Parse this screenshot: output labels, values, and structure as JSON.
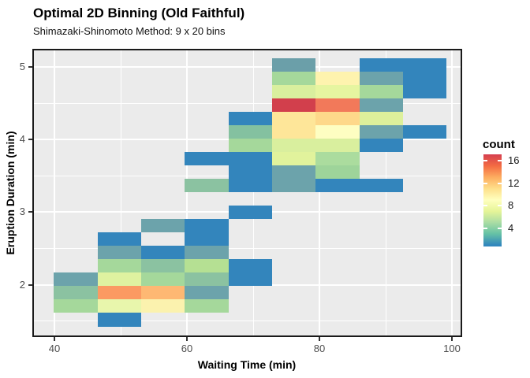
{
  "header": {
    "title": "Optimal 2D Binning (Old Faithful)",
    "subtitle": "Shimazaki-Shinomoto Method: 9 x 20 bins"
  },
  "style": {
    "panel_background": "#EBEBEB",
    "grid_color": "#FFFFFF",
    "panel_border_color": "#1A1A1A",
    "axis_text_color": "#4D4D4D",
    "tick_mark_color": "#333333"
  },
  "chart_data": {
    "type": "heatmap",
    "title": "Optimal 2D Binning (Old Faithful)",
    "subtitle": "Shimazaki-Shinomoto Method: 9 x 20 bins",
    "xlabel": "Waiting Time (min)",
    "ylabel": "Eruption Duration (min)",
    "legend_title": "count",
    "palette": "Spectral reversed (blue=low, red=high)",
    "count_range": [
      1,
      17
    ],
    "x_bins": 9,
    "y_bins": 20,
    "x_bin_edges": [
      40.0,
      46.6,
      53.2,
      59.8,
      66.4,
      73.0,
      79.6,
      86.2,
      92.8,
      99.4
    ],
    "y_bin_edges": [
      1.5,
      1.68,
      1.86,
      2.04,
      2.22,
      2.4,
      2.58,
      2.76,
      2.94,
      3.12,
      3.3,
      3.48,
      3.66,
      3.84,
      4.02,
      4.2,
      4.38,
      4.56,
      4.74,
      4.92,
      5.1
    ],
    "row_convention": "row 0 = top bin (eruption 4.92-5.10), row 19 = bottom bin (1.50-1.68); col 0 = leftmost waiting-time bin",
    "x_ticks": [
      40,
      60,
      80,
      100
    ],
    "y_ticks": [
      5,
      4,
      3,
      2
    ],
    "x_minor_ticks": [
      50,
      70,
      90
    ],
    "y_minor_ticks": [
      4.5,
      3.5,
      2.5,
      1.5
    ],
    "tiles": [
      {
        "col": 0,
        "row": 16,
        "count": 3,
        "color": "#6CA3AB"
      },
      {
        "col": 0,
        "row": 17,
        "count": 4,
        "color": "#8BC2A1"
      },
      {
        "col": 0,
        "row": 18,
        "count": 5,
        "color": "#A5D89B"
      },
      {
        "col": 1,
        "row": 13,
        "count": 1,
        "color": "#3385BC"
      },
      {
        "col": 1,
        "row": 14,
        "count": 3,
        "color": "#6CA3AB"
      },
      {
        "col": 1,
        "row": 15,
        "count": 5,
        "color": "#A5D89B"
      },
      {
        "col": 1,
        "row": 16,
        "count": 7,
        "color": "#DFF2A0"
      },
      {
        "col": 1,
        "row": 17,
        "count": 14,
        "color": "#FB9A62"
      },
      {
        "col": 1,
        "row": 18,
        "count": 8,
        "color": "#E8F6AC"
      },
      {
        "col": 1,
        "row": 19,
        "count": 1,
        "color": "#3385BC"
      },
      {
        "col": 2,
        "row": 12,
        "count": 3,
        "color": "#6CA3AB"
      },
      {
        "col": 2,
        "row": 14,
        "count": 1,
        "color": "#3385BC"
      },
      {
        "col": 2,
        "row": 15,
        "count": 4,
        "color": "#8BC2A1"
      },
      {
        "col": 2,
        "row": 16,
        "count": 5,
        "color": "#A5D89B"
      },
      {
        "col": 2,
        "row": 17,
        "count": 13,
        "color": "#FEB873"
      },
      {
        "col": 2,
        "row": 18,
        "count": 9,
        "color": "#FBF2AE"
      },
      {
        "col": 3,
        "row": 7,
        "count": 1,
        "color": "#3385BC"
      },
      {
        "col": 3,
        "row": 9,
        "count": 4,
        "color": "#8BC2A1"
      },
      {
        "col": 3,
        "row": 12,
        "count": 1,
        "color": "#3385BC"
      },
      {
        "col": 3,
        "row": 13,
        "count": 1,
        "color": "#3385BC"
      },
      {
        "col": 3,
        "row": 14,
        "count": 3,
        "color": "#6CA3AB"
      },
      {
        "col": 3,
        "row": 15,
        "count": 6,
        "color": "#B5E093"
      },
      {
        "col": 3,
        "row": 16,
        "count": 4,
        "color": "#8BC2A1"
      },
      {
        "col": 3,
        "row": 17,
        "count": 3,
        "color": "#6CA3AB"
      },
      {
        "col": 3,
        "row": 18,
        "count": 5,
        "color": "#A5D89B"
      },
      {
        "col": 4,
        "row": 4,
        "count": 1,
        "color": "#3385BC"
      },
      {
        "col": 4,
        "row": 5,
        "count": 4,
        "color": "#84C1A0"
      },
      {
        "col": 4,
        "row": 6,
        "count": 5,
        "color": "#A5D89B"
      },
      {
        "col": 4,
        "row": 7,
        "count": 1,
        "color": "#3385BC"
      },
      {
        "col": 4,
        "row": 8,
        "count": 1,
        "color": "#3385BC"
      },
      {
        "col": 4,
        "row": 9,
        "count": 1,
        "color": "#3385BC"
      },
      {
        "col": 4,
        "row": 11,
        "count": 1,
        "color": "#3385BC"
      },
      {
        "col": 4,
        "row": 15,
        "count": 1,
        "color": "#3385BC"
      },
      {
        "col": 4,
        "row": 16,
        "count": 1,
        "color": "#3385BC"
      },
      {
        "col": 5,
        "row": 0,
        "count": 3,
        "color": "#6B9FA9"
      },
      {
        "col": 5,
        "row": 1,
        "count": 5,
        "color": "#A5D89B"
      },
      {
        "col": 5,
        "row": 2,
        "count": 7,
        "color": "#D9EF9E"
      },
      {
        "col": 5,
        "row": 3,
        "count": 17,
        "color": "#D23F4C"
      },
      {
        "col": 5,
        "row": 4,
        "count": 10,
        "color": "#FEE699"
      },
      {
        "col": 5,
        "row": 5,
        "count": 10,
        "color": "#FEE699"
      },
      {
        "col": 5,
        "row": 6,
        "count": 7,
        "color": "#D9EF9E"
      },
      {
        "col": 5,
        "row": 7,
        "count": 7,
        "color": "#E1F39C"
      },
      {
        "col": 5,
        "row": 8,
        "count": 3,
        "color": "#6CA3AB"
      },
      {
        "col": 5,
        "row": 9,
        "count": 3,
        "color": "#6CA3AB"
      },
      {
        "col": 6,
        "row": 1,
        "count": 9,
        "color": "#FEF3AE"
      },
      {
        "col": 6,
        "row": 2,
        "count": 8,
        "color": "#E6F5A0"
      },
      {
        "col": 6,
        "row": 3,
        "count": 15,
        "color": "#F2795A"
      },
      {
        "col": 6,
        "row": 4,
        "count": 11,
        "color": "#FED88A"
      },
      {
        "col": 6,
        "row": 5,
        "count": 9,
        "color": "#FEFEC2"
      },
      {
        "col": 6,
        "row": 6,
        "count": 7,
        "color": "#D9EF9E"
      },
      {
        "col": 6,
        "row": 7,
        "count": 5,
        "color": "#ABDC9E"
      },
      {
        "col": 6,
        "row": 8,
        "count": 5,
        "color": "#9ED49A"
      },
      {
        "col": 6,
        "row": 9,
        "count": 1,
        "color": "#3385BC"
      },
      {
        "col": 7,
        "row": 0,
        "count": 1,
        "color": "#3385BC"
      },
      {
        "col": 7,
        "row": 1,
        "count": 3,
        "color": "#6CA3AB"
      },
      {
        "col": 7,
        "row": 2,
        "count": 5,
        "color": "#A5D89B"
      },
      {
        "col": 7,
        "row": 3,
        "count": 3,
        "color": "#6CA3AB"
      },
      {
        "col": 7,
        "row": 4,
        "count": 7,
        "color": "#DDF09B"
      },
      {
        "col": 7,
        "row": 5,
        "count": 3,
        "color": "#6CA3AB"
      },
      {
        "col": 7,
        "row": 6,
        "count": 1,
        "color": "#3385BC"
      },
      {
        "col": 7,
        "row": 9,
        "count": 1,
        "color": "#3385BC"
      },
      {
        "col": 8,
        "row": 0,
        "count": 1,
        "color": "#3385BC"
      },
      {
        "col": 8,
        "row": 1,
        "count": 1,
        "color": "#3385BC"
      },
      {
        "col": 8,
        "row": 2,
        "count": 1,
        "color": "#3385BC"
      },
      {
        "col": 8,
        "row": 5,
        "count": 1,
        "color": "#3385BC"
      }
    ],
    "legend": {
      "title": "count",
      "ticks": [
        {
          "label": "16",
          "pos_pct_from_top": 6.8
        },
        {
          "label": "12",
          "pos_pct_from_top": 31.4
        },
        {
          "label": "8",
          "pos_pct_from_top": 55.6
        },
        {
          "label": "4",
          "pos_pct_from_top": 80.3
        }
      ],
      "gradient_stops": [
        {
          "color": "#D53E4F",
          "pos": 0
        },
        {
          "color": "#F46D43",
          "pos": 12.9
        },
        {
          "color": "#FDAE61",
          "pos": 25.1
        },
        {
          "color": "#FEE08B",
          "pos": 37.3
        },
        {
          "color": "#FFFFBF",
          "pos": 49.5
        },
        {
          "color": "#E6F598",
          "pos": 61.7
        },
        {
          "color": "#ABDDA4",
          "pos": 73.9
        },
        {
          "color": "#66C2A5",
          "pos": 86.1
        },
        {
          "color": "#3288BD",
          "pos": 98.3
        },
        {
          "color": "#3288BD",
          "pos": 100
        }
      ]
    }
  }
}
